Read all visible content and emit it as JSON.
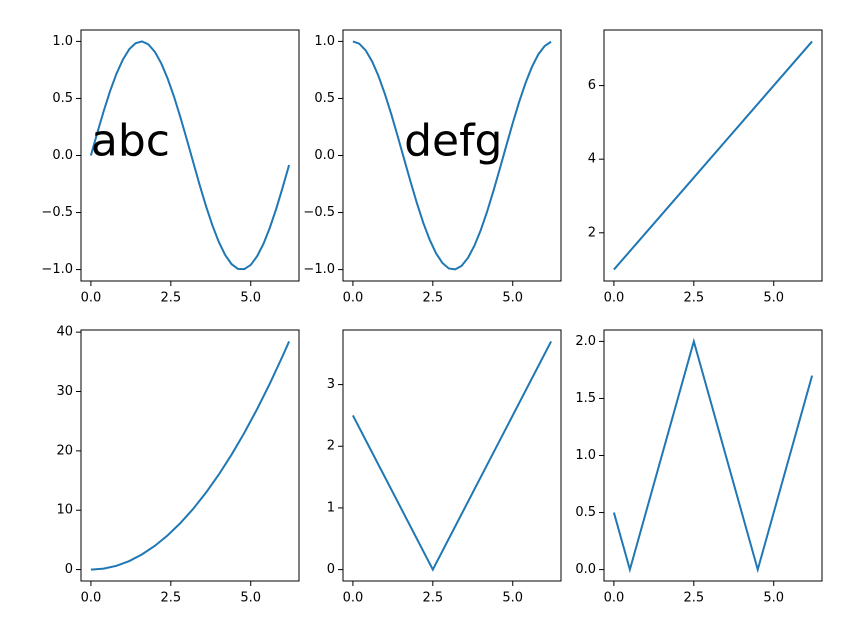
{
  "chart_data": [
    {
      "type": "line",
      "color": "#1f77b4",
      "x": [
        0,
        0.2,
        0.4,
        0.6,
        0.8,
        1.0,
        1.2,
        1.4,
        1.6,
        1.8,
        2.0,
        2.2,
        2.4,
        2.6,
        2.8,
        3.0,
        3.2,
        3.4,
        3.6,
        3.8,
        4.0,
        4.2,
        4.4,
        4.6,
        4.8,
        5.0,
        5.2,
        5.4,
        5.6,
        5.8,
        6.0,
        6.2
      ],
      "values": [
        0,
        0.199,
        0.389,
        0.565,
        0.717,
        0.841,
        0.932,
        0.985,
        1.0,
        0.974,
        0.909,
        0.808,
        0.675,
        0.516,
        0.335,
        0.141,
        -0.058,
        -0.256,
        -0.443,
        -0.612,
        -0.757,
        -0.872,
        -0.952,
        -0.994,
        -0.996,
        -0.959,
        -0.883,
        -0.773,
        -0.631,
        -0.465,
        -0.279,
        -0.083
      ],
      "xlim": [
        -0.31,
        6.51
      ],
      "ylim": [
        -1.1,
        1.1
      ],
      "xticks": [
        {
          "value": 0,
          "label": "0.0"
        },
        {
          "value": 2.5,
          "label": "2.5"
        },
        {
          "value": 5,
          "label": "5.0"
        }
      ],
      "yticks": [
        {
          "value": -1,
          "label": "−1.0"
        },
        {
          "value": -0.5,
          "label": "−0.5"
        },
        {
          "value": 0,
          "label": "0.0"
        },
        {
          "value": 0.5,
          "label": "0.5"
        },
        {
          "value": 1,
          "label": "1.0"
        }
      ],
      "annotation": {
        "text": "abc",
        "x": 0,
        "y": 0,
        "color": "#8080ff",
        "align": "start"
      }
    },
    {
      "type": "line",
      "color": "#1f77b4",
      "x": [
        0,
        0.2,
        0.4,
        0.6,
        0.8,
        1.0,
        1.2,
        1.4,
        1.6,
        1.8,
        2.0,
        2.2,
        2.4,
        2.6,
        2.8,
        3.0,
        3.2,
        3.4,
        3.6,
        3.8,
        4.0,
        4.2,
        4.4,
        4.6,
        4.8,
        5.0,
        5.2,
        5.4,
        5.6,
        5.8,
        6.0,
        6.2
      ],
      "values": [
        1,
        0.98,
        0.921,
        0.825,
        0.697,
        0.54,
        0.362,
        0.17,
        -0.029,
        -0.227,
        -0.416,
        -0.589,
        -0.737,
        -0.857,
        -0.942,
        -0.99,
        -0.998,
        -0.967,
        -0.897,
        -0.791,
        -0.654,
        -0.49,
        -0.307,
        -0.112,
        0.087,
        0.284,
        0.469,
        0.635,
        0.776,
        0.886,
        0.96,
        0.997
      ],
      "xlim": [
        -0.31,
        6.51
      ],
      "ylim": [
        -1.1,
        1.1
      ],
      "xticks": [
        {
          "value": 0,
          "label": "0.0"
        },
        {
          "value": 2.5,
          "label": "2.5"
        },
        {
          "value": 5,
          "label": "5.0"
        }
      ],
      "yticks": [
        {
          "value": -1,
          "label": "−1.0"
        },
        {
          "value": -0.5,
          "label": "−0.5"
        },
        {
          "value": 0,
          "label": "0.0"
        },
        {
          "value": 0.5,
          "label": "0.5"
        },
        {
          "value": 1,
          "label": "1.0"
        }
      ],
      "annotation": {
        "text": "defg",
        "x": 3.14,
        "y": 0,
        "color": "#f03c3c",
        "align": "middle"
      }
    },
    {
      "type": "line",
      "color": "#1f77b4",
      "x": [
        0,
        6.2
      ],
      "values": [
        1,
        7.2
      ],
      "xlim": [
        -0.31,
        6.51
      ],
      "ylim": [
        0.69,
        7.51
      ],
      "xticks": [
        {
          "value": 0,
          "label": "0.0"
        },
        {
          "value": 2.5,
          "label": "2.5"
        },
        {
          "value": 5,
          "label": "5.0"
        }
      ],
      "yticks": [
        2,
        4,
        6
      ]
    },
    {
      "type": "line",
      "color": "#1f77b4",
      "x": [
        0,
        0.4,
        0.8,
        1.2,
        1.6,
        2.0,
        2.4,
        2.8,
        3.2,
        3.6,
        4.0,
        4.4,
        4.8,
        5.2,
        5.6,
        6.0,
        6.2
      ],
      "values": [
        0,
        0.16,
        0.64,
        1.44,
        2.56,
        4,
        5.76,
        7.84,
        10.24,
        12.96,
        16,
        19.36,
        23.04,
        27.04,
        31.36,
        36,
        38.44
      ],
      "xlim": [
        -0.31,
        6.51
      ],
      "ylim": [
        -1.922,
        40.362
      ],
      "xticks": [
        {
          "value": 0,
          "label": "0.0"
        },
        {
          "value": 2.5,
          "label": "2.5"
        },
        {
          "value": 5,
          "label": "5.0"
        }
      ],
      "yticks": [
        0,
        10,
        20,
        30,
        40
      ]
    },
    {
      "type": "line",
      "color": "#1f77b4",
      "x": [
        0,
        2.5,
        6.2
      ],
      "values": [
        2.5,
        0,
        3.7
      ],
      "xlim": [
        -0.31,
        6.51
      ],
      "ylim": [
        -0.185,
        3.885
      ],
      "xticks": [
        {
          "value": 0,
          "label": "0.0"
        },
        {
          "value": 2.5,
          "label": "2.5"
        },
        {
          "value": 5,
          "label": "5.0"
        }
      ],
      "yticks": [
        0,
        1,
        2,
        3
      ]
    },
    {
      "type": "line",
      "color": "#1f77b4",
      "x": [
        0,
        0.5,
        2.5,
        4.5,
        6.2
      ],
      "values": [
        0.5,
        0,
        2,
        0,
        1.7
      ],
      "xlim": [
        -0.31,
        6.51
      ],
      "ylim": [
        -0.1,
        2.1
      ],
      "xticks": [
        {
          "value": 0,
          "label": "0.0"
        },
        {
          "value": 2.5,
          "label": "2.5"
        },
        {
          "value": 5,
          "label": "5.0"
        }
      ],
      "yticks": [
        {
          "value": 0,
          "label": "0.0"
        },
        {
          "value": 0.5,
          "label": "0.5"
        },
        {
          "value": 1,
          "label": "1.0"
        },
        {
          "value": 1.5,
          "label": "1.5"
        },
        {
          "value": 2,
          "label": "2.0"
        }
      ]
    }
  ]
}
